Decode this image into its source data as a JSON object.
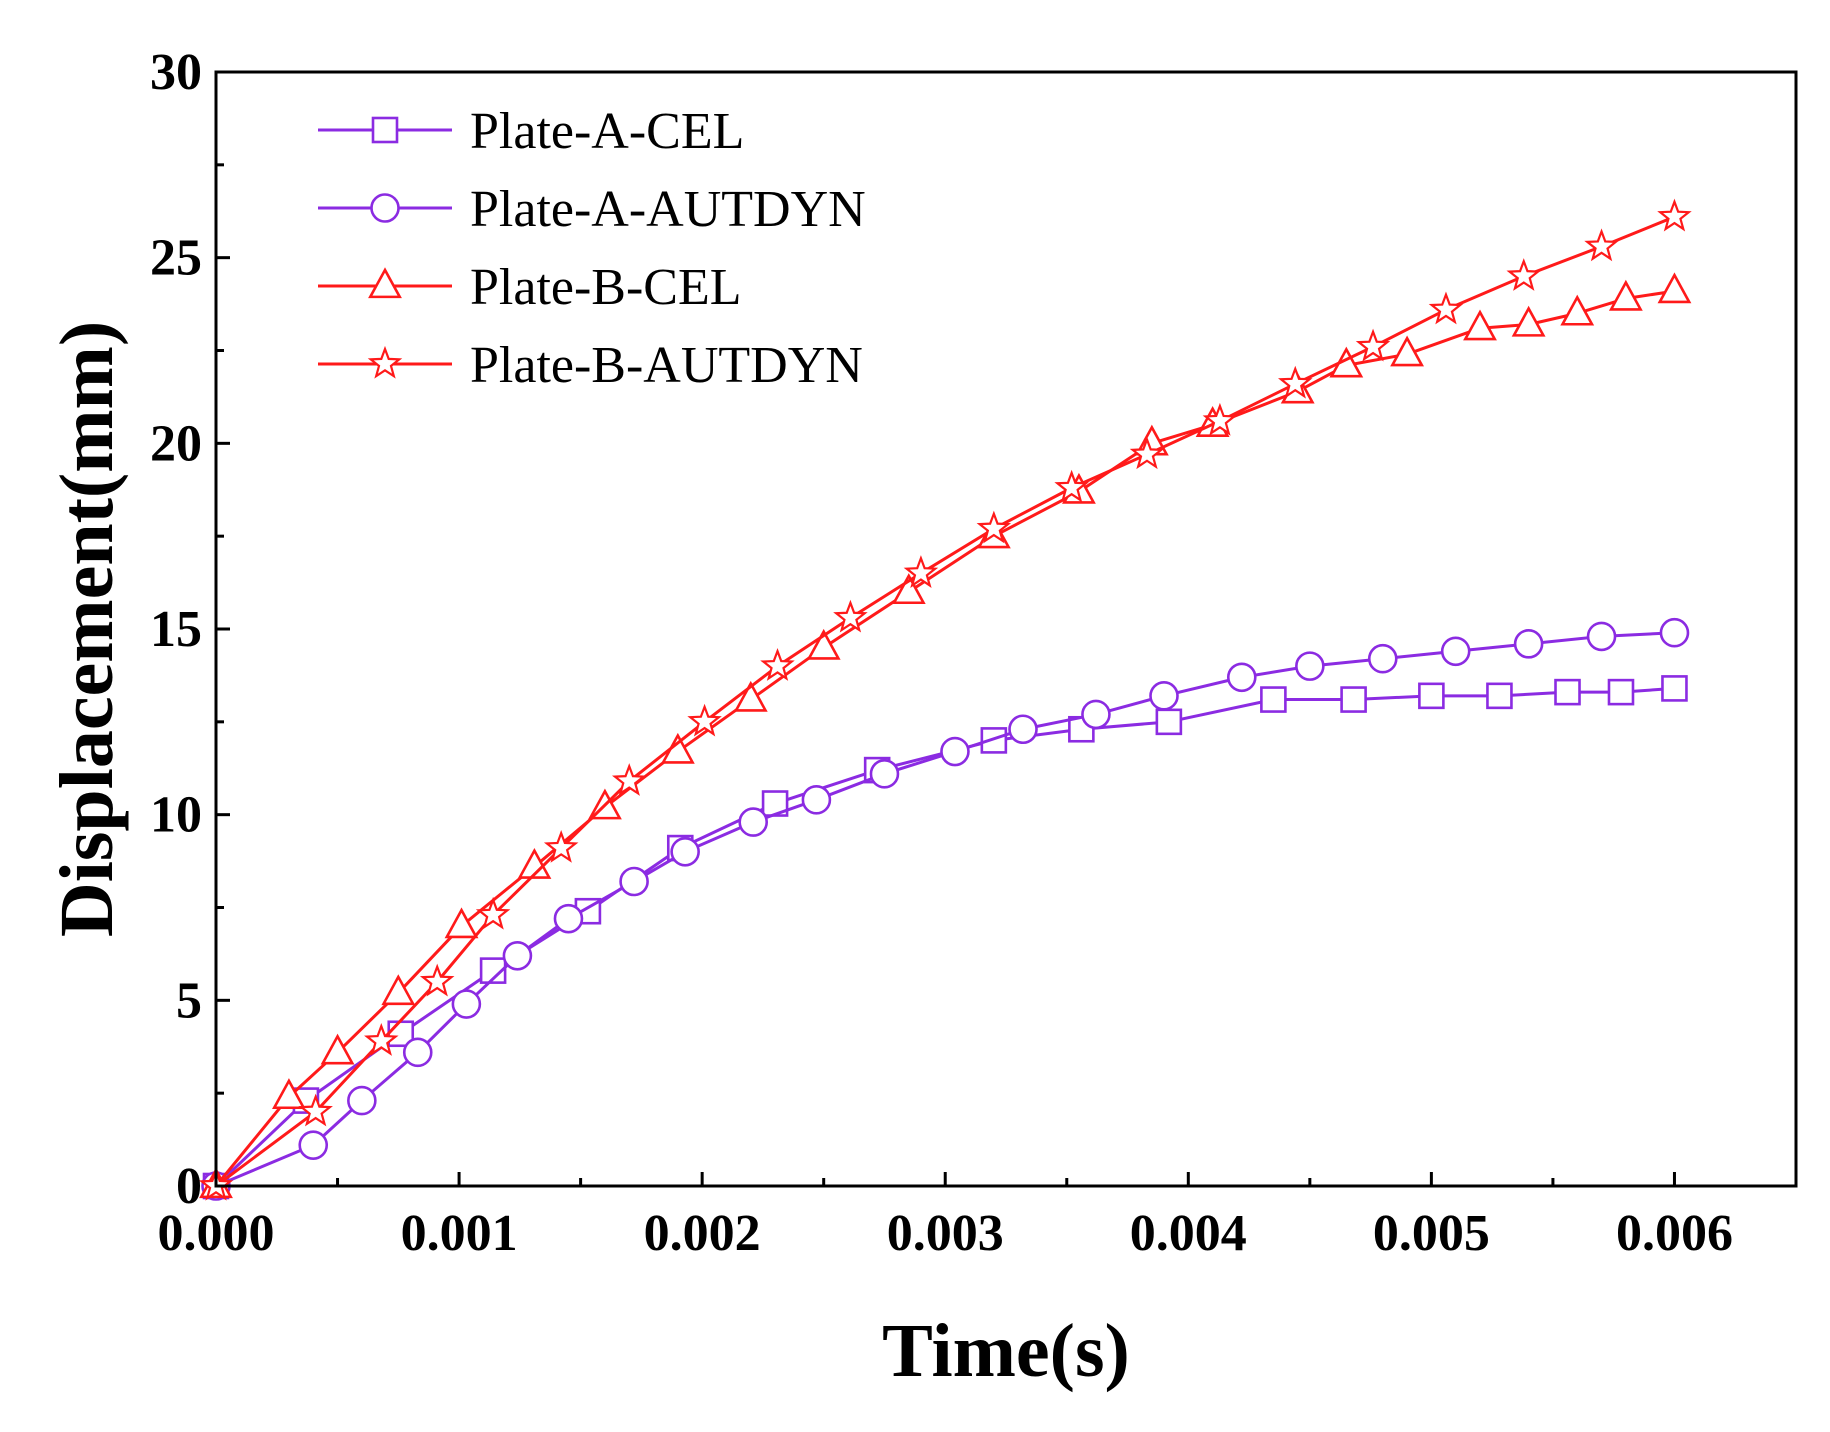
{
  "chart_data": {
    "type": "line",
    "title": "",
    "xlabel": "Time(s)",
    "ylabel": "Displacement(mm)",
    "xlim": [
      0,
      0.0065
    ],
    "ylim": [
      0,
      30
    ],
    "xticks": [
      0,
      0.001,
      0.002,
      0.003,
      0.004,
      0.005,
      0.006
    ],
    "xtick_labels": [
      "0.000",
      "0.001",
      "0.002",
      "0.003",
      "0.004",
      "0.005",
      "0.006"
    ],
    "yticks": [
      0,
      5,
      10,
      15,
      20,
      25,
      30
    ],
    "ytick_labels": [
      "0",
      "5",
      "10",
      "15",
      "20",
      "25",
      "30"
    ],
    "grid": false,
    "legend_position": "top-left",
    "series": [
      {
        "name": "Plate-A-CEL",
        "color": "#8B2BE2",
        "marker": "square",
        "x": [
          0,
          0.00037,
          0.00076,
          0.00114,
          0.00153,
          0.00191,
          0.0023,
          0.00272,
          0.0032,
          0.00356,
          0.00392,
          0.00435,
          0.00468,
          0.005,
          0.00528,
          0.00556,
          0.00578,
          0.006
        ],
        "y": [
          0,
          2.3,
          4.1,
          5.8,
          7.4,
          9.1,
          10.3,
          11.2,
          12.0,
          12.3,
          12.5,
          13.1,
          13.1,
          13.2,
          13.2,
          13.3,
          13.3,
          13.4
        ]
      },
      {
        "name": "Plate-A-AUTDYN",
        "color": "#8B2BE2",
        "marker": "circle",
        "x": [
          0,
          0.0004,
          0.0006,
          0.00083,
          0.00103,
          0.00124,
          0.00145,
          0.00172,
          0.00193,
          0.00221,
          0.00247,
          0.00275,
          0.00304,
          0.00332,
          0.00362,
          0.0039,
          0.00422,
          0.0045,
          0.0048,
          0.0051,
          0.0054,
          0.0057,
          0.006
        ],
        "y": [
          0,
          1.1,
          2.3,
          3.6,
          4.9,
          6.2,
          7.2,
          8.2,
          9.0,
          9.8,
          10.4,
          11.1,
          11.7,
          12.3,
          12.7,
          13.2,
          13.7,
          14.0,
          14.2,
          14.4,
          14.6,
          14.8,
          14.9
        ]
      },
      {
        "name": "Plate-B-CEL",
        "color": "#FF1A1A",
        "marker": "triangle",
        "x": [
          0,
          0.0003,
          0.0005,
          0.00075,
          0.00101,
          0.00131,
          0.0016,
          0.0019,
          0.0022,
          0.0025,
          0.00285,
          0.0032,
          0.00355,
          0.00385,
          0.0041,
          0.00445,
          0.00465,
          0.0049,
          0.0052,
          0.0054,
          0.0056,
          0.0058,
          0.006
        ],
        "y": [
          0,
          2.4,
          3.6,
          5.2,
          7.0,
          8.6,
          10.2,
          11.7,
          13.1,
          14.5,
          16.0,
          17.5,
          18.7,
          20.0,
          20.5,
          21.4,
          22.1,
          22.4,
          23.1,
          23.2,
          23.5,
          23.9,
          24.1
        ]
      },
      {
        "name": "Plate-B-AUTDYN",
        "color": "#FF1A1A",
        "marker": "star",
        "x": [
          0,
          0.00041,
          0.00068,
          0.00091,
          0.00114,
          0.00142,
          0.0017,
          0.00201,
          0.00231,
          0.00261,
          0.0029,
          0.0032,
          0.00352,
          0.00383,
          0.00413,
          0.00444,
          0.00476,
          0.00506,
          0.00538,
          0.0057,
          0.006
        ],
        "y": [
          0,
          2.0,
          3.9,
          5.5,
          7.3,
          9.1,
          10.9,
          12.5,
          14.0,
          15.3,
          16.5,
          17.7,
          18.8,
          19.7,
          20.6,
          21.6,
          22.6,
          23.6,
          24.5,
          25.3,
          26.1
        ]
      }
    ]
  }
}
